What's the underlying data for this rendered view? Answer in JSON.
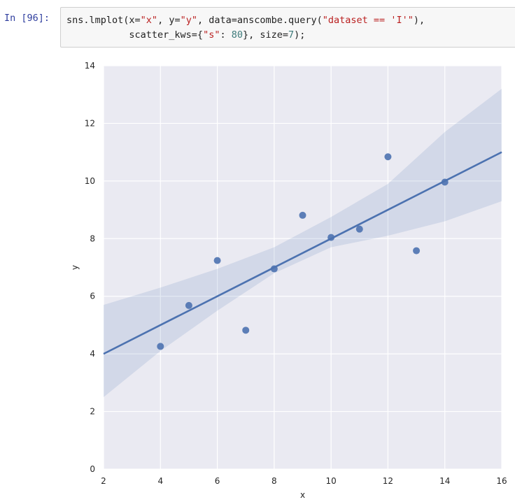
{
  "cell": {
    "prompt": "In [96]:",
    "code_lines": [
      [
        {
          "t": "sns.lmplot(x=",
          "c": ""
        },
        {
          "t": "\"x\"",
          "c": "s"
        },
        {
          "t": ", y=",
          "c": ""
        },
        {
          "t": "\"y\"",
          "c": "s"
        },
        {
          "t": ", data=anscombe.query(",
          "c": ""
        },
        {
          "t": "\"dataset == 'I'\"",
          "c": "s"
        },
        {
          "t": "),",
          "c": ""
        }
      ],
      [
        {
          "t": "           scatter_kws={",
          "c": ""
        },
        {
          "t": "\"s\"",
          "c": "s"
        },
        {
          "t": ": ",
          "c": ""
        },
        {
          "t": "80",
          "c": "n"
        },
        {
          "t": "}, size=",
          "c": ""
        },
        {
          "t": "7",
          "c": "n"
        },
        {
          "t": ");",
          "c": ""
        }
      ]
    ]
  },
  "chart_data": {
    "type": "scatter",
    "title": "",
    "xlabel": "x",
    "ylabel": "y",
    "xlim": [
      2,
      16
    ],
    "ylim": [
      0,
      14
    ],
    "xticks": [
      2,
      4,
      6,
      8,
      10,
      12,
      14,
      16
    ],
    "yticks": [
      0,
      2,
      4,
      6,
      8,
      10,
      12,
      14
    ],
    "grid": true,
    "colors": {
      "background": "#eaeaf2",
      "grid": "#ffffff",
      "points": "#4c72b0",
      "line": "#4c72b0",
      "band": "#4c72b0"
    },
    "points": {
      "x": [
        10,
        8,
        13,
        9,
        11,
        14,
        6,
        4,
        12,
        7,
        5
      ],
      "y": [
        8.04,
        6.95,
        7.58,
        8.81,
        8.33,
        9.96,
        7.24,
        4.26,
        10.84,
        4.82,
        5.68
      ]
    },
    "regression": {
      "intercept": 3.0,
      "slope": 0.5,
      "x_range": [
        2,
        16
      ]
    },
    "confidence_band": {
      "x": [
        2,
        4,
        6,
        8,
        10,
        12,
        14,
        16
      ],
      "lower": [
        2.5,
        4.1,
        5.5,
        6.8,
        7.7,
        8.1,
        8.6,
        9.3
      ],
      "upper": [
        5.7,
        6.3,
        6.95,
        7.7,
        8.75,
        9.9,
        11.7,
        13.2
      ]
    }
  }
}
